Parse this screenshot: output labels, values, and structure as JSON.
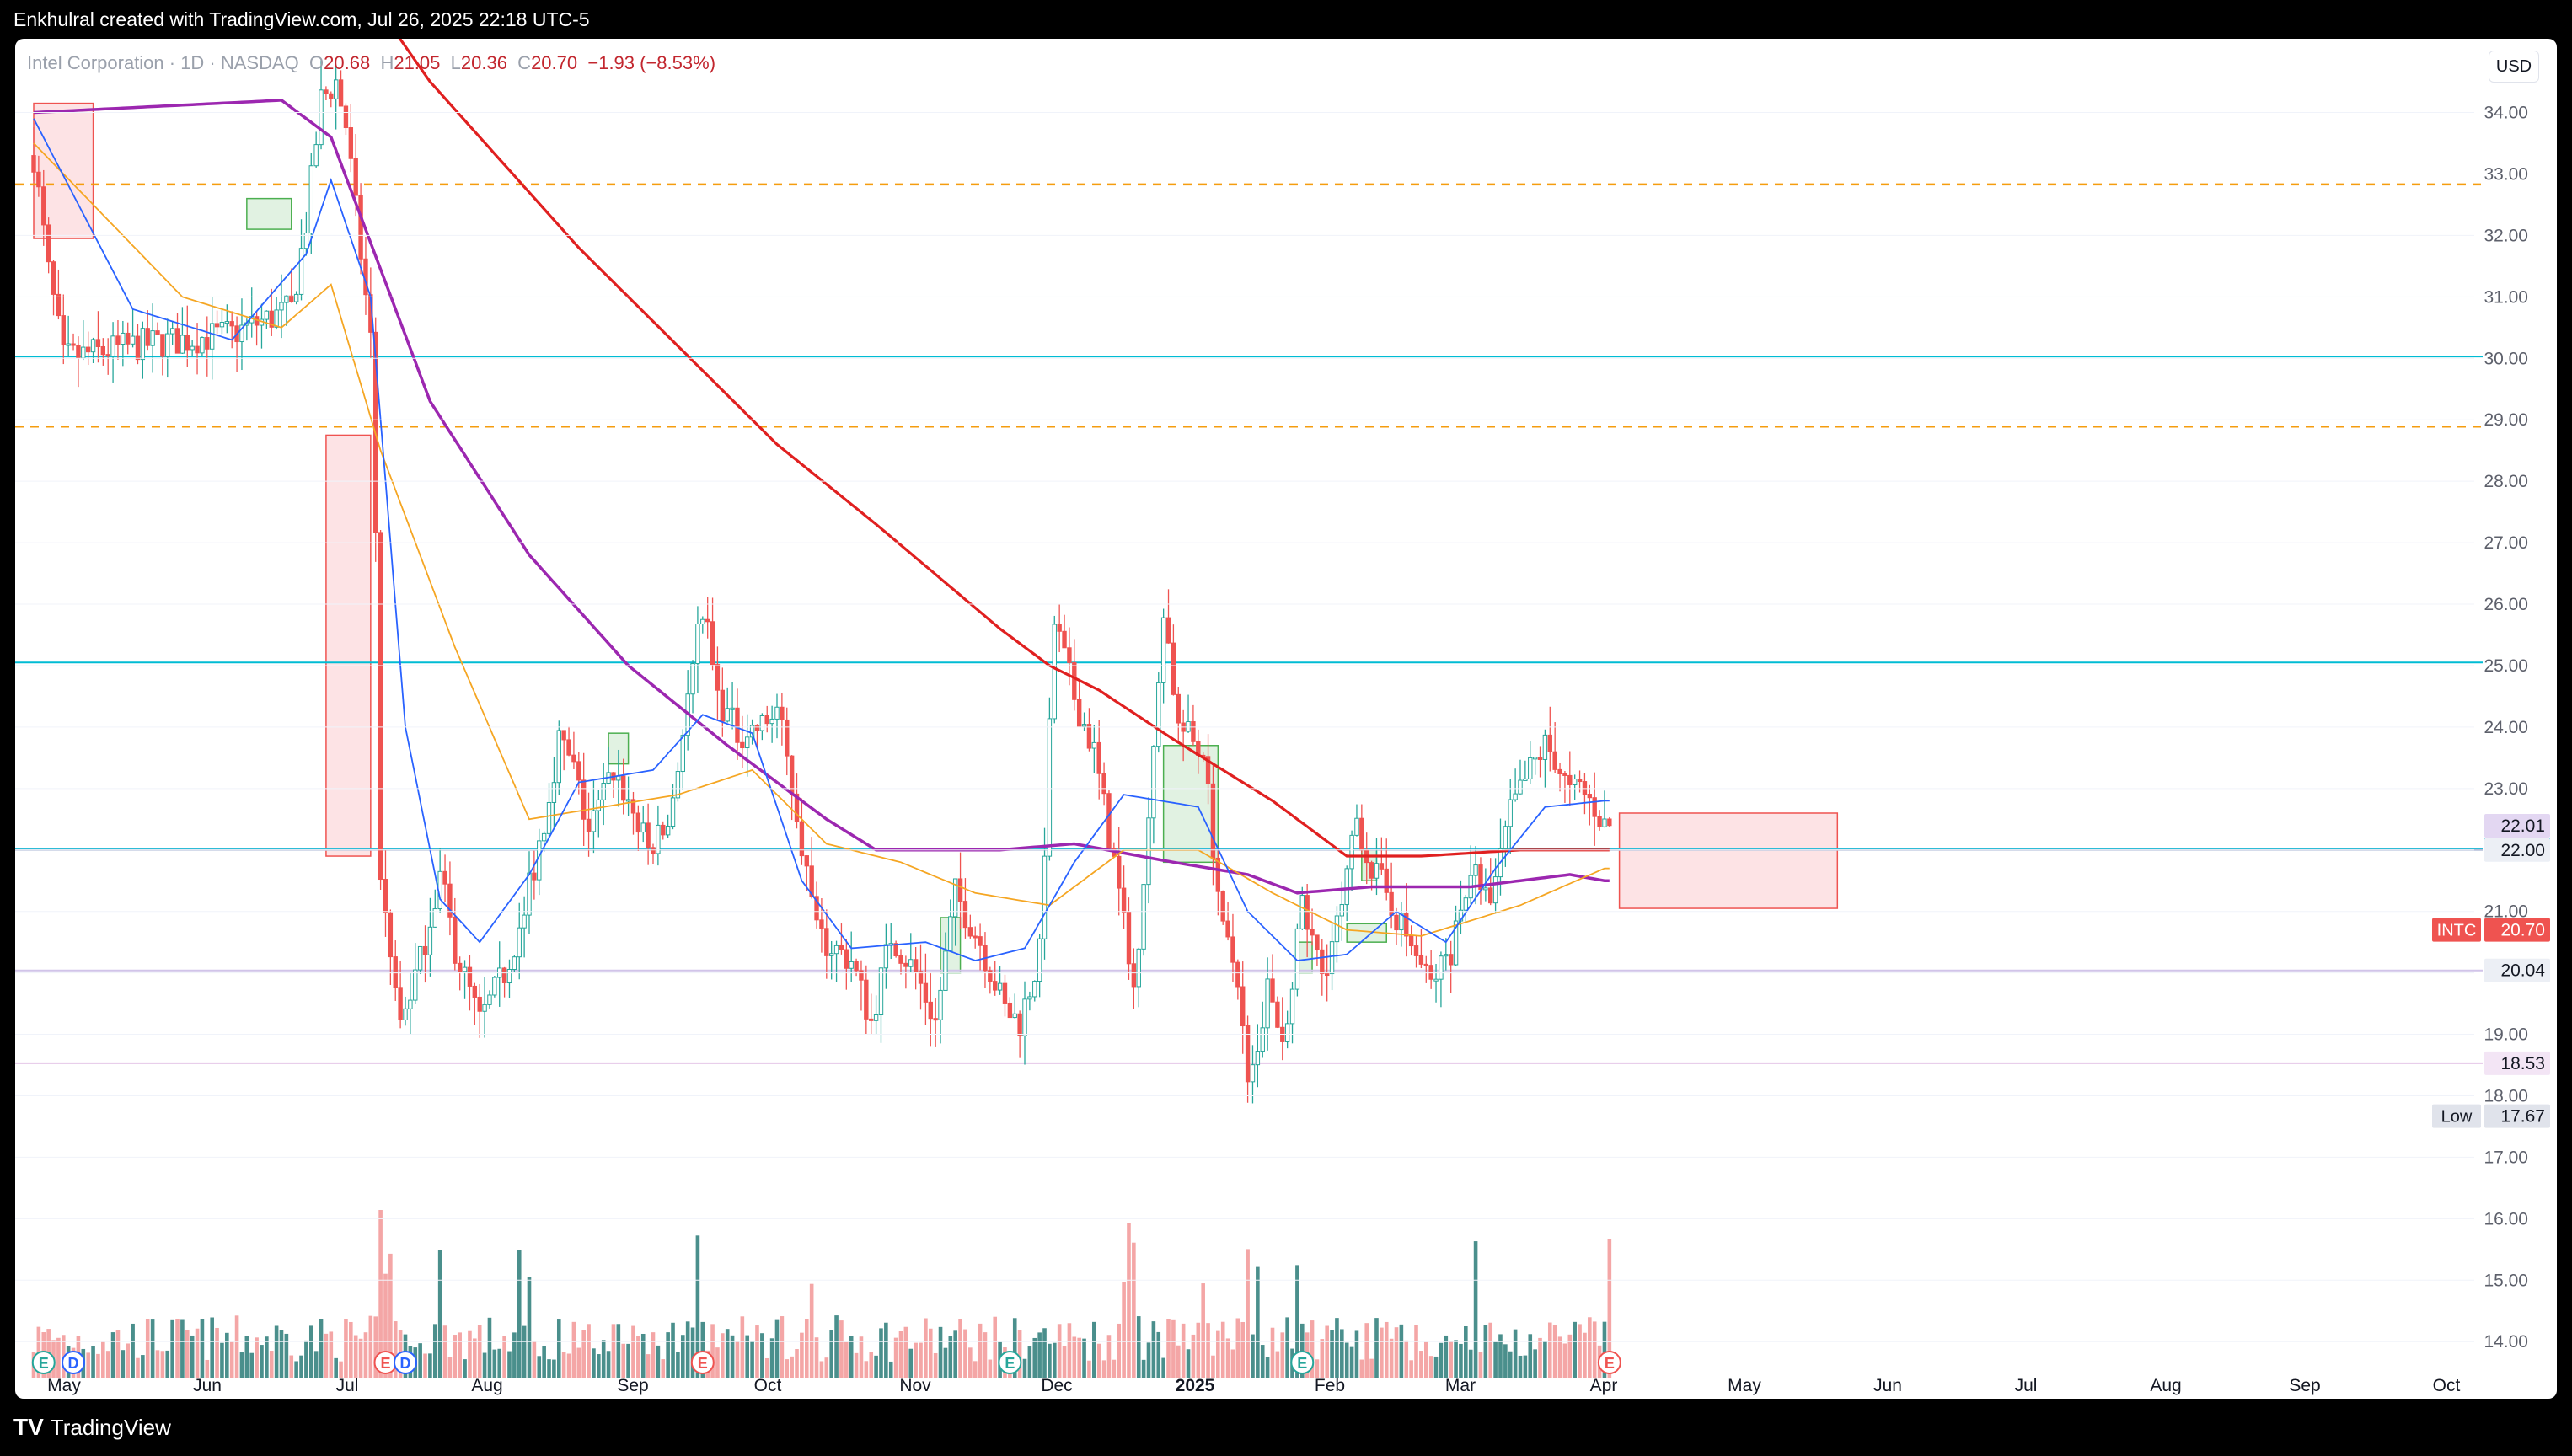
{
  "header": {
    "attribution": "Enkhulral created with TradingView.com, Jul 26, 2025 22:18 UTC-5"
  },
  "legend": {
    "symbol": "Intel Corporation · 1D · NASDAQ",
    "open_label": "O",
    "open": "20.68",
    "high_label": "H",
    "high": "21.05",
    "low_label": "L",
    "low": "20.36",
    "close_label": "C",
    "close": "20.70",
    "change": "−1.93 (−8.53%)"
  },
  "currency": "USD",
  "footer": {
    "brand": "TradingView",
    "logo_text": "TV"
  },
  "colors": {
    "up": "#26a69a",
    "down": "#ef5350",
    "vol_up": "#4a8f8c",
    "vol_down": "#f4a6a6",
    "sma200": "#e02020",
    "sma100": "#9c27b0",
    "sma50": "#f5a623",
    "sma20": "#2962ff",
    "cyan_level": "#00bcd4",
    "orange_level": "#f59d0f",
    "purple_level": "#d1c4e9",
    "supply_zone": "#f8c8cc",
    "demand_zone": "#c8e6c9"
  },
  "chart_data": {
    "type": "candlestick",
    "title": "Intel Corporation · 1D · NASDAQ",
    "y_range": [
      13.4,
      35.2
    ],
    "y_ticks": [
      "14.00",
      "15.00",
      "16.00",
      "17.00",
      "18.00",
      "19.00",
      "20.00",
      "21.00",
      "22.00",
      "23.00",
      "24.00",
      "25.00",
      "26.00",
      "27.00",
      "28.00",
      "29.00",
      "30.00",
      "31.00",
      "32.00",
      "33.00",
      "34.00"
    ],
    "x_labels": [
      "May",
      "Jun",
      "Jul",
      "Aug",
      "Sep",
      "Oct",
      "Nov",
      "Dec",
      "2025",
      "Feb",
      "Mar",
      "Apr",
      "May",
      "Jun",
      "Jul",
      "Aug",
      "Sep",
      "Oct"
    ],
    "price_keypoints": [
      [
        0,
        33.3
      ],
      [
        3,
        31.4
      ],
      [
        6,
        30.0
      ],
      [
        20,
        30.2
      ],
      [
        40,
        30.4
      ],
      [
        52,
        30.8
      ],
      [
        55,
        32.2
      ],
      [
        58,
        34.2
      ],
      [
        61,
        34.5
      ],
      [
        63,
        33.8
      ],
      [
        68,
        30.3
      ],
      [
        69,
        27.2
      ],
      [
        70,
        21.6
      ],
      [
        72,
        20.1
      ],
      [
        74,
        19.2
      ],
      [
        78,
        20.2
      ],
      [
        82,
        21.6
      ],
      [
        85,
        20.4
      ],
      [
        90,
        19.2
      ],
      [
        95,
        20.0
      ],
      [
        99,
        21.0
      ],
      [
        103,
        22.5
      ],
      [
        106,
        23.8
      ],
      [
        109,
        23.3
      ],
      [
        112,
        22.3
      ],
      [
        117,
        23.3
      ],
      [
        120,
        22.8
      ],
      [
        124,
        22.0
      ],
      [
        128,
        22.4
      ],
      [
        132,
        24.4
      ],
      [
        135,
        26.0
      ],
      [
        138,
        24.5
      ],
      [
        142,
        23.9
      ],
      [
        147,
        24.0
      ],
      [
        150,
        24.3
      ],
      [
        154,
        22.6
      ],
      [
        158,
        20.6
      ],
      [
        165,
        20.2
      ],
      [
        169,
        19.2
      ],
      [
        173,
        20.6
      ],
      [
        178,
        20.0
      ],
      [
        182,
        19.2
      ],
      [
        186,
        21.3
      ],
      [
        191,
        20.5
      ],
      [
        196,
        19.4
      ],
      [
        199,
        19.2
      ],
      [
        203,
        20.3
      ],
      [
        206,
        25.7
      ],
      [
        210,
        24.5
      ],
      [
        214,
        23.6
      ],
      [
        218,
        21.8
      ],
      [
        222,
        19.7
      ],
      [
        226,
        23.5
      ],
      [
        228,
        26.0
      ],
      [
        231,
        24.0
      ],
      [
        236,
        23.6
      ],
      [
        240,
        20.6
      ],
      [
        243,
        20.0
      ],
      [
        245,
        18.1
      ],
      [
        249,
        19.7
      ],
      [
        252,
        18.9
      ],
      [
        256,
        21.0
      ],
      [
        260,
        20.0
      ],
      [
        264,
        21.0
      ],
      [
        267,
        22.5
      ],
      [
        270,
        21.7
      ],
      [
        273,
        21.3
      ],
      [
        277,
        20.6
      ],
      [
        282,
        19.8
      ],
      [
        286,
        20.4
      ],
      [
        290,
        21.7
      ],
      [
        294,
        21.1
      ],
      [
        298,
        22.6
      ],
      [
        302,
        23.3
      ],
      [
        305,
        23.7
      ],
      [
        307,
        23.5
      ],
      [
        310,
        22.9
      ],
      [
        312,
        23.0
      ],
      [
        315,
        22.7
      ],
      [
        317,
        22.4
      ]
    ],
    "indicators": [
      {
        "name": "SMA 200",
        "color": "#e02020",
        "points": [
          [
            0,
            38.6
          ],
          [
            60,
            36.8
          ],
          [
            80,
            34.5
          ],
          [
            110,
            31.8
          ],
          [
            150,
            28.6
          ],
          [
            170,
            27.3
          ],
          [
            195,
            25.6
          ],
          [
            205,
            25.0
          ],
          [
            215,
            24.6
          ],
          [
            230,
            23.8
          ],
          [
            250,
            22.8
          ],
          [
            265,
            21.9
          ],
          [
            280,
            21.9
          ],
          [
            300,
            22.0
          ],
          [
            317,
            22.0
          ]
        ]
      },
      {
        "name": "SMA 100",
        "color": "#9c27b0",
        "points": [
          [
            0,
            34.0
          ],
          [
            50,
            34.2
          ],
          [
            60,
            33.6
          ],
          [
            80,
            29.3
          ],
          [
            100,
            26.8
          ],
          [
            120,
            25.0
          ],
          [
            140,
            23.7
          ],
          [
            160,
            22.5
          ],
          [
            170,
            22.0
          ],
          [
            195,
            22.0
          ],
          [
            210,
            22.1
          ],
          [
            230,
            21.8
          ],
          [
            245,
            21.6
          ],
          [
            255,
            21.3
          ],
          [
            270,
            21.4
          ],
          [
            290,
            21.4
          ],
          [
            310,
            21.6
          ],
          [
            317,
            21.5
          ]
        ]
      },
      {
        "name": "SMA 50",
        "color": "#f5a623",
        "points": [
          [
            0,
            33.5
          ],
          [
            30,
            31.0
          ],
          [
            50,
            30.5
          ],
          [
            60,
            31.2
          ],
          [
            70,
            28.5
          ],
          [
            85,
            25.3
          ],
          [
            100,
            22.5
          ],
          [
            115,
            22.7
          ],
          [
            130,
            22.9
          ],
          [
            145,
            23.3
          ],
          [
            160,
            22.1
          ],
          [
            175,
            21.8
          ],
          [
            190,
            21.3
          ],
          [
            205,
            21.1
          ],
          [
            220,
            22.0
          ],
          [
            235,
            22.0
          ],
          [
            250,
            21.3
          ],
          [
            265,
            20.7
          ],
          [
            280,
            20.6
          ],
          [
            300,
            21.1
          ],
          [
            317,
            21.7
          ]
        ]
      },
      {
        "name": "SMA 20",
        "color": "#2962ff",
        "points": [
          [
            0,
            33.9
          ],
          [
            20,
            30.8
          ],
          [
            40,
            30.3
          ],
          [
            55,
            31.7
          ],
          [
            60,
            32.9
          ],
          [
            68,
            31.0
          ],
          [
            75,
            24.0
          ],
          [
            82,
            21.2
          ],
          [
            90,
            20.5
          ],
          [
            100,
            21.6
          ],
          [
            110,
            23.1
          ],
          [
            125,
            23.3
          ],
          [
            135,
            24.2
          ],
          [
            145,
            23.9
          ],
          [
            155,
            21.5
          ],
          [
            165,
            20.4
          ],
          [
            180,
            20.5
          ],
          [
            190,
            20.2
          ],
          [
            200,
            20.4
          ],
          [
            210,
            21.8
          ],
          [
            220,
            22.9
          ],
          [
            235,
            22.7
          ],
          [
            245,
            21.0
          ],
          [
            255,
            20.2
          ],
          [
            265,
            20.3
          ],
          [
            275,
            21.0
          ],
          [
            285,
            20.5
          ],
          [
            295,
            21.7
          ],
          [
            305,
            22.7
          ],
          [
            317,
            22.8
          ]
        ]
      }
    ],
    "horizontal_levels": [
      {
        "value": 32.83,
        "label": "32.83",
        "color": "#f59d0f",
        "style": "dashed"
      },
      {
        "value": 30.03,
        "label": "30.03",
        "color": "#00bcd4",
        "style": "solid"
      },
      {
        "value": 28.89,
        "label": "28.89",
        "color": "#f59d0f",
        "style": "dashed"
      },
      {
        "value": 25.05,
        "label": "25.05",
        "color": "#00bcd4",
        "style": "solid"
      },
      {
        "value": 22.01,
        "label": "22.01",
        "color": "#00bcd4",
        "style": "solid"
      },
      {
        "value": 22.0,
        "label": "22.00",
        "color": "#b3bdd9",
        "style": "solid"
      },
      {
        "value": 20.04,
        "label": "20.04",
        "color": "#d1c4e9",
        "style": "solid"
      },
      {
        "value": 18.53,
        "label": "18.53",
        "color": "#e5c7e8",
        "style": "solid"
      }
    ],
    "price_labels": [
      {
        "value": 22.01,
        "label": "22.01",
        "bg": "#e3d7f2",
        "fg": "#131722",
        "note": "upper"
      },
      {
        "value": 22.01,
        "label": "22.01",
        "bg": "#00bcd4",
        "fg": "#131722",
        "note": "lower"
      },
      {
        "value": 22.0,
        "label": "22.00",
        "bg": "#eceff5",
        "fg": "#131722",
        "note": ""
      },
      {
        "value": 20.7,
        "label": "20.70",
        "bg": "#ef5350",
        "fg": "#ffffff",
        "tag": "INTC"
      },
      {
        "value": 20.04,
        "label": "20.04",
        "bg": "#eceff5",
        "fg": "#131722",
        "note": ""
      },
      {
        "value": 18.53,
        "label": "18.53",
        "bg": "#f3e5f5",
        "fg": "#131722",
        "note": ""
      },
      {
        "value": 17.67,
        "label": "17.67",
        "bg": "#e0e3eb",
        "fg": "#131722",
        "tag": "Low"
      }
    ],
    "zones": [
      {
        "kind": "supply",
        "x0": 0,
        "x1": 12,
        "y0": 31.95,
        "y1": 34.15
      },
      {
        "kind": "supply",
        "x0": 59,
        "x1": 68,
        "y0": 21.9,
        "y1": 28.75
      },
      {
        "kind": "supply",
        "x0": 320,
        "x1": 364,
        "y0": 21.05,
        "y1": 22.6
      },
      {
        "kind": "demand",
        "x0": 43,
        "x1": 52,
        "y0": 32.1,
        "y1": 32.6
      },
      {
        "kind": "demand",
        "x0": 116,
        "x1": 120,
        "y0": 23.4,
        "y1": 23.9
      },
      {
        "kind": "demand",
        "x0": 183,
        "x1": 187,
        "y0": 20.0,
        "y1": 20.9
      },
      {
        "kind": "demand",
        "x0": 228,
        "x1": 239,
        "y0": 21.8,
        "y1": 23.7
      },
      {
        "kind": "demand",
        "x0": 255,
        "x1": 258,
        "y0": 20.0,
        "y1": 20.5
      },
      {
        "kind": "demand",
        "x0": 265,
        "x1": 273,
        "y0": 20.5,
        "y1": 20.8
      },
      {
        "kind": "demand",
        "x0": 268,
        "x1": 271,
        "y0": 21.5,
        "y1": 22.0
      }
    ],
    "events": [
      {
        "type": "E",
        "x": 2,
        "color": "#26a69a"
      },
      {
        "type": "D",
        "x": 8,
        "color": "#2962ff"
      },
      {
        "type": "E",
        "x": 71,
        "color": "#ef5350"
      },
      {
        "type": "D",
        "x": 75,
        "color": "#2962ff"
      },
      {
        "type": "E",
        "x": 135,
        "color": "#ef5350"
      },
      {
        "type": "E",
        "x": 197,
        "color": "#26a69a"
      },
      {
        "type": "E",
        "x": 256,
        "color": "#26a69a"
      },
      {
        "type": "E",
        "x": 318,
        "color": "#ef5350"
      }
    ]
  }
}
